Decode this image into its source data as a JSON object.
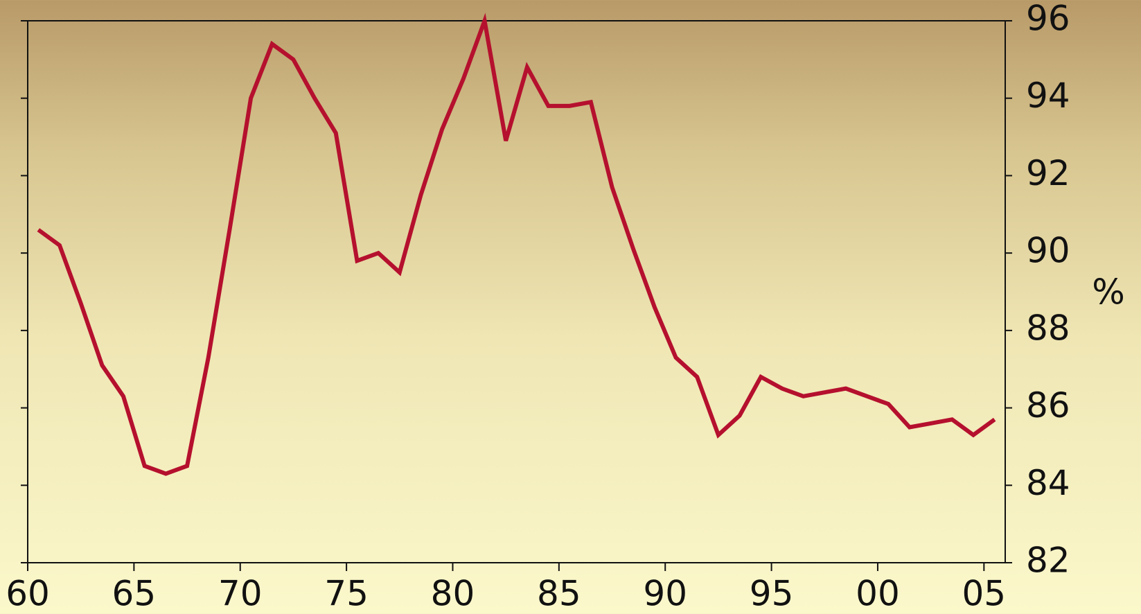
{
  "chart_data": {
    "type": "line",
    "y_label": "%",
    "x": [
      1960.5,
      1961.5,
      1962.5,
      1963.5,
      1964.5,
      1965.5,
      1966.5,
      1967.5,
      1968.5,
      1969.5,
      1970.5,
      1971.5,
      1972.5,
      1973.5,
      1974.5,
      1975.5,
      1976.5,
      1977.5,
      1978.5,
      1979.5,
      1980.5,
      1981.5,
      1982.5,
      1983.5,
      1984.5,
      1985.5,
      1986.5,
      1987.5,
      1988.5,
      1989.5,
      1990.5,
      1991.5,
      1992.5,
      1993.5,
      1994.5,
      1995.5,
      1996.5,
      1997.5,
      1998.5,
      1999.5,
      2000.5,
      2001.5,
      2002.5,
      2003.5,
      2004.5,
      2005.5
    ],
    "series": [
      {
        "color": "#b5102e",
        "values": [
          90.6,
          90.2,
          88.7,
          87.1,
          86.3,
          84.5,
          84.3,
          84.5,
          87.3,
          90.6,
          94.0,
          95.4,
          95.0,
          94.0,
          93.1,
          89.8,
          90.0,
          89.5,
          91.5,
          93.2,
          94.5,
          96.0,
          92.9,
          94.8,
          93.8,
          93.8,
          93.9,
          91.7,
          90.1,
          88.6,
          87.3,
          86.8,
          85.3,
          85.8,
          86.8,
          86.5,
          86.3,
          86.4,
          86.5,
          86.3,
          86.1,
          85.5,
          85.6,
          85.7,
          85.3,
          85.7
        ]
      }
    ],
    "xlim": [
      1960,
      2006
    ],
    "xticks": [
      {
        "value": 1960,
        "label": "60"
      },
      {
        "value": 1965,
        "label": "65"
      },
      {
        "value": 1970,
        "label": "70"
      },
      {
        "value": 1975,
        "label": "75"
      },
      {
        "value": 1980,
        "label": "80"
      },
      {
        "value": 1985,
        "label": "85"
      },
      {
        "value": 1990,
        "label": "90"
      },
      {
        "value": 1995,
        "label": "95"
      },
      {
        "value": 2000,
        "label": "00"
      },
      {
        "value": 2005,
        "label": "05"
      }
    ],
    "ylim": [
      82,
      96
    ],
    "yticks": [
      82,
      84,
      86,
      88,
      90,
      92,
      94,
      96
    ]
  }
}
